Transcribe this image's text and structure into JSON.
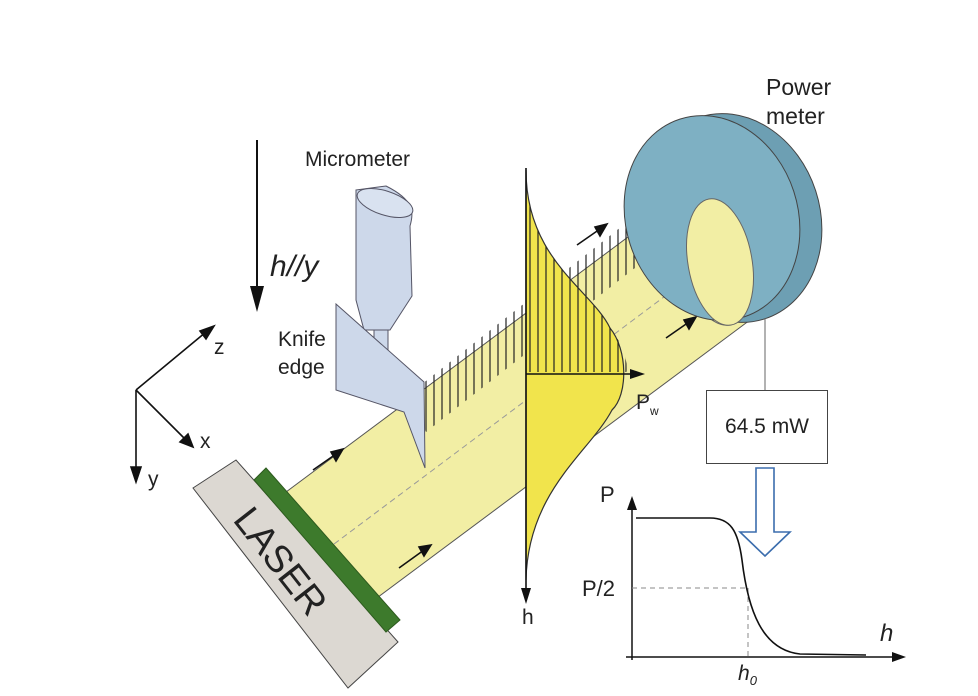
{
  "labels": {
    "power_meter_line1": "Power",
    "power_meter_line2": "meter",
    "micrometer": "Micrometer",
    "knife_line1": "Knife",
    "knife_line2": "edge",
    "hy_h": "h",
    "hy_par": "//",
    "hy_y": "y",
    "axis_z": "z",
    "axis_x": "x",
    "axis_y": "y",
    "laser": "LASER",
    "pw_main": "P",
    "pw_sub": "w",
    "profile_h": "h"
  },
  "power_reading": "64.5 mW",
  "graph": {
    "ylabel": "P",
    "half_label": "P/2",
    "xlabel": "h",
    "h0_main": "h",
    "h0_sub": "0"
  },
  "colors": {
    "beam": "#f2eea4",
    "profile": "#f1e44c",
    "power_meter": "#7eb0c3",
    "laser_body": "#dcd8d2",
    "laser_window": "#3d7a2c",
    "micrometer": "#cdd8ea",
    "arrow_outline": "#3b6dad"
  }
}
